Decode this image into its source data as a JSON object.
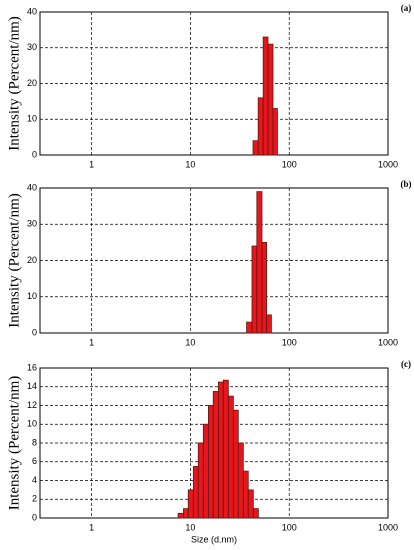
{
  "chart_data": [
    {
      "type": "histogram",
      "label": "(a)",
      "ylabel": "Intensity (Percent/nm)",
      "color": "#e8161c",
      "grid": true,
      "xscale": "log",
      "xlim": [
        0.3,
        1000
      ],
      "xticks": [
        1,
        10,
        100,
        1000
      ],
      "ylim": [
        0,
        40
      ],
      "yticks": [
        0,
        10,
        20,
        30,
        40
      ],
      "bins": [
        43,
        48.5,
        54.5,
        61,
        68.5,
        76
      ],
      "values": [
        4,
        16,
        33,
        31,
        13
      ]
    },
    {
      "type": "histogram",
      "label": "(b)",
      "ylabel": "Intensity (Percent/nm)",
      "color": "#e8161c",
      "grid": true,
      "xscale": "log",
      "xlim": [
        0.3,
        1000
      ],
      "xticks": [
        1,
        10,
        100,
        1000
      ],
      "ylim": [
        0,
        40
      ],
      "yticks": [
        0,
        10,
        20,
        30,
        40
      ],
      "bins": [
        37,
        42,
        47,
        53,
        59,
        66
      ],
      "values": [
        3,
        24,
        39,
        25,
        5
      ]
    },
    {
      "type": "histogram",
      "label": "(c)",
      "ylabel": "Intensity (Percent/nm)",
      "xlabel": "Size (d.nm)",
      "color": "#e8161c",
      "grid": true,
      "xscale": "log",
      "xlim": [
        0.3,
        1000
      ],
      "xticks": [
        1,
        10,
        100,
        1000
      ],
      "ylim": [
        0,
        16
      ],
      "yticks": [
        0,
        2,
        4,
        6,
        8,
        10,
        12,
        14,
        16
      ],
      "bins": [
        7.5,
        8.5,
        9.5,
        10.7,
        12,
        13.5,
        15.2,
        17,
        19.2,
        21.5,
        24.2,
        27.2,
        30.5,
        34.3,
        38.5,
        43.3,
        48.7
      ],
      "values": [
        0.5,
        1,
        3,
        5.5,
        8,
        10,
        12,
        13.5,
        14.5,
        14.7,
        13,
        11.5,
        8,
        5,
        3,
        1
      ]
    }
  ]
}
